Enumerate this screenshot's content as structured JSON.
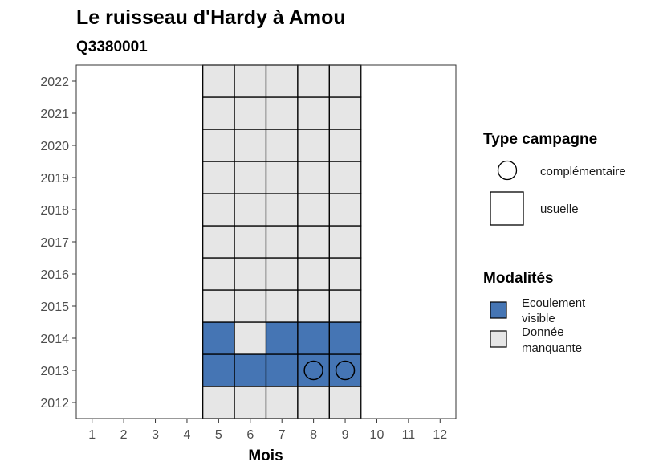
{
  "chart_data": {
    "type": "heatmap",
    "title": "Le ruisseau d'Hardy à Amou",
    "subtitle": "Q3380001",
    "xlabel": "Mois",
    "ylabel": "",
    "x_ticks": [
      "1",
      "2",
      "3",
      "4",
      "5",
      "6",
      "7",
      "8",
      "9",
      "10",
      "11",
      "12"
    ],
    "y_ticks": [
      "2012",
      "2013",
      "2014",
      "2015",
      "2016",
      "2017",
      "2018",
      "2019",
      "2020",
      "2021",
      "2022"
    ],
    "xlim": [
      0.5,
      12.5
    ],
    "ylim": [
      2011.5,
      2022.5
    ],
    "grid": false,
    "legend_position": "right",
    "colors": {
      "Ecoulement visible": "#4575b4",
      "Donnée manquante": "#e6e6e6"
    },
    "cells": [
      {
        "month": 5,
        "year": 2012,
        "modalite": "Donnée manquante"
      },
      {
        "month": 6,
        "year": 2012,
        "modalite": "Donnée manquante"
      },
      {
        "month": 7,
        "year": 2012,
        "modalite": "Donnée manquante"
      },
      {
        "month": 8,
        "year": 2012,
        "modalite": "Donnée manquante"
      },
      {
        "month": 9,
        "year": 2012,
        "modalite": "Donnée manquante"
      },
      {
        "month": 5,
        "year": 2013,
        "modalite": "Ecoulement visible"
      },
      {
        "month": 6,
        "year": 2013,
        "modalite": "Ecoulement visible"
      },
      {
        "month": 7,
        "year": 2013,
        "modalite": "Ecoulement visible"
      },
      {
        "month": 8,
        "year": 2013,
        "modalite": "Ecoulement visible",
        "campagne": "complémentaire"
      },
      {
        "month": 9,
        "year": 2013,
        "modalite": "Ecoulement visible",
        "campagne": "complémentaire"
      },
      {
        "month": 5,
        "year": 2014,
        "modalite": "Ecoulement visible"
      },
      {
        "month": 6,
        "year": 2014,
        "modalite": "Donnée manquante"
      },
      {
        "month": 7,
        "year": 2014,
        "modalite": "Ecoulement visible"
      },
      {
        "month": 8,
        "year": 2014,
        "modalite": "Ecoulement visible"
      },
      {
        "month": 9,
        "year": 2014,
        "modalite": "Ecoulement visible"
      },
      {
        "month": 5,
        "year": 2015,
        "modalite": "Donnée manquante"
      },
      {
        "month": 6,
        "year": 2015,
        "modalite": "Donnée manquante"
      },
      {
        "month": 7,
        "year": 2015,
        "modalite": "Donnée manquante"
      },
      {
        "month": 8,
        "year": 2015,
        "modalite": "Donnée manquante"
      },
      {
        "month": 9,
        "year": 2015,
        "modalite": "Donnée manquante"
      },
      {
        "month": 5,
        "year": 2016,
        "modalite": "Donnée manquante"
      },
      {
        "month": 6,
        "year": 2016,
        "modalite": "Donnée manquante"
      },
      {
        "month": 7,
        "year": 2016,
        "modalite": "Donnée manquante"
      },
      {
        "month": 8,
        "year": 2016,
        "modalite": "Donnée manquante"
      },
      {
        "month": 9,
        "year": 2016,
        "modalite": "Donnée manquante"
      },
      {
        "month": 5,
        "year": 2017,
        "modalite": "Donnée manquante"
      },
      {
        "month": 6,
        "year": 2017,
        "modalite": "Donnée manquante"
      },
      {
        "month": 7,
        "year": 2017,
        "modalite": "Donnée manquante"
      },
      {
        "month": 8,
        "year": 2017,
        "modalite": "Donnée manquante"
      },
      {
        "month": 9,
        "year": 2017,
        "modalite": "Donnée manquante"
      },
      {
        "month": 5,
        "year": 2018,
        "modalite": "Donnée manquante"
      },
      {
        "month": 6,
        "year": 2018,
        "modalite": "Donnée manquante"
      },
      {
        "month": 7,
        "year": 2018,
        "modalite": "Donnée manquante"
      },
      {
        "month": 8,
        "year": 2018,
        "modalite": "Donnée manquante"
      },
      {
        "month": 9,
        "year": 2018,
        "modalite": "Donnée manquante"
      },
      {
        "month": 5,
        "year": 2019,
        "modalite": "Donnée manquante"
      },
      {
        "month": 6,
        "year": 2019,
        "modalite": "Donnée manquante"
      },
      {
        "month": 7,
        "year": 2019,
        "modalite": "Donnée manquante"
      },
      {
        "month": 8,
        "year": 2019,
        "modalite": "Donnée manquante"
      },
      {
        "month": 9,
        "year": 2019,
        "modalite": "Donnée manquante"
      },
      {
        "month": 5,
        "year": 2020,
        "modalite": "Donnée manquante"
      },
      {
        "month": 6,
        "year": 2020,
        "modalite": "Donnée manquante"
      },
      {
        "month": 7,
        "year": 2020,
        "modalite": "Donnée manquante"
      },
      {
        "month": 8,
        "year": 2020,
        "modalite": "Donnée manquante"
      },
      {
        "month": 9,
        "year": 2020,
        "modalite": "Donnée manquante"
      },
      {
        "month": 5,
        "year": 2021,
        "modalite": "Donnée manquante"
      },
      {
        "month": 6,
        "year": 2021,
        "modalite": "Donnée manquante"
      },
      {
        "month": 7,
        "year": 2021,
        "modalite": "Donnée manquante"
      },
      {
        "month": 8,
        "year": 2021,
        "modalite": "Donnée manquante"
      },
      {
        "month": 9,
        "year": 2021,
        "modalite": "Donnée manquante"
      },
      {
        "month": 5,
        "year": 2022,
        "modalite": "Donnée manquante"
      },
      {
        "month": 6,
        "year": 2022,
        "modalite": "Donnée manquante"
      },
      {
        "month": 7,
        "year": 2022,
        "modalite": "Donnée manquante"
      },
      {
        "month": 8,
        "year": 2022,
        "modalite": "Donnée manquante"
      },
      {
        "month": 9,
        "year": 2022,
        "modalite": "Donnée manquante"
      }
    ],
    "legend": {
      "type_campagne": {
        "title": "Type campagne",
        "items": [
          {
            "label": "complémentaire",
            "shape": "circle"
          },
          {
            "label": "usuelle",
            "shape": "square"
          }
        ]
      },
      "modalites": {
        "title": "Modalités",
        "items": [
          {
            "label_lines": [
              "Ecoulement",
              "visible"
            ],
            "color": "#4575b4"
          },
          {
            "label_lines": [
              "Donnée",
              "manquante"
            ],
            "color": "#e6e6e6"
          }
        ]
      }
    }
  }
}
